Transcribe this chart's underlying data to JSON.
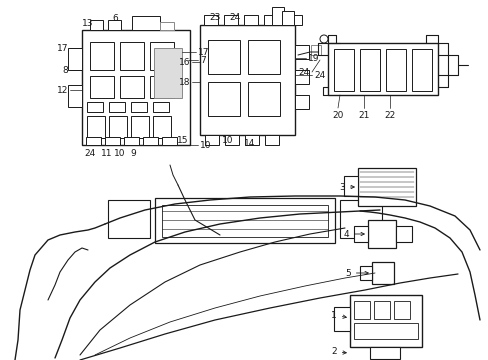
{
  "bg_color": "#ffffff",
  "line_color": "#1a1a1a",
  "fig_width": 4.89,
  "fig_height": 3.6,
  "dpi": 100,
  "gray": "#888888"
}
